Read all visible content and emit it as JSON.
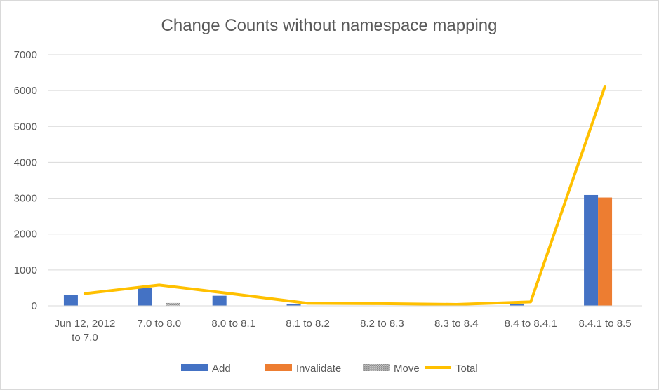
{
  "chart_data": {
    "type": "bar",
    "title": "Change Counts without namespace mapping",
    "categories": [
      [
        "Jun 12, 2012",
        "to 7.0"
      ],
      [
        "7.0 to 8.0"
      ],
      [
        "8.0 to 8.1"
      ],
      [
        "8.1 to 8.2"
      ],
      [
        "8.2 to 8.3"
      ],
      [
        "8.3 to 8.4"
      ],
      [
        "8.4 to 8.4.1"
      ],
      [
        "8.4.1 to 8.5"
      ]
    ],
    "ylim": [
      0,
      7000
    ],
    "yticks": [
      0,
      1000,
      2000,
      3000,
      4000,
      5000,
      6000,
      7000
    ],
    "grid": true,
    "legend_position": "bottom",
    "series": [
      {
        "name": "Add",
        "kind": "bar",
        "color": "#4472c4",
        "values": [
          310,
          500,
          280,
          40,
          10,
          20,
          60,
          3090
        ]
      },
      {
        "name": "Invalidate",
        "kind": "bar",
        "color": "#ed7d31",
        "values": [
          0,
          0,
          0,
          0,
          0,
          0,
          0,
          3020
        ]
      },
      {
        "name": "Move",
        "kind": "bar",
        "color": "#a5a5a5",
        "pattern": true,
        "values": [
          0,
          80,
          0,
          0,
          0,
          0,
          0,
          0
        ]
      },
      {
        "name": "Total",
        "kind": "line",
        "color": "#ffc000",
        "values": [
          340,
          580,
          330,
          70,
          60,
          40,
          110,
          6120
        ]
      }
    ]
  }
}
